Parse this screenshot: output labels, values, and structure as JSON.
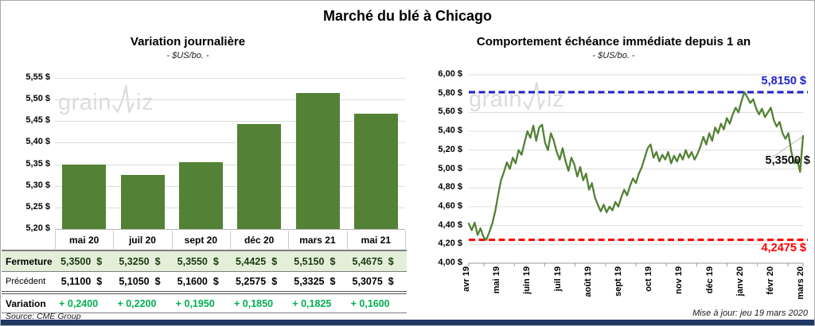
{
  "header": {
    "title": "Marché du blé à Chicago"
  },
  "watermark": {
    "part1": "grain",
    "part2": "iz"
  },
  "colors": {
    "series_green": "#538135",
    "table_row_green": "#e3efd9",
    "variation_text": "#00B050",
    "watermark_gray": "#dcdcdc",
    "brand_navy": "#1f3864"
  },
  "chart_data": [
    {
      "type": "bar",
      "title": "Variation  journalière",
      "subtitle": "- $US/bo. -",
      "categories": [
        "mai 20",
        "juil 20",
        "sept 20",
        "déc 20",
        "mars 21",
        "mai 21"
      ],
      "values": [
        5.35,
        5.325,
        5.355,
        5.4425,
        5.515,
        5.4675
      ],
      "ylim": [
        5.2,
        5.55
      ],
      "ytick_step": 0.05,
      "ytick_labels": [
        "5,55 $",
        "5,50 $",
        "5,45 $",
        "5,40 $",
        "5,35 $",
        "5,30 $",
        "5,25 $",
        "5,20 $"
      ],
      "bar_color": "#538135",
      "grid": true
    },
    {
      "type": "line",
      "title": "Comportement  échéance immédiate depuis 1 an",
      "subtitle": "- $US/bo. -",
      "x_tick_labels": [
        "avr 19",
        "mai 19",
        "juin 19",
        "juil 19",
        "août 19",
        "sept 19",
        "oct 19",
        "nov 19",
        "déc 19",
        "janv 20",
        "févr 20",
        "mars 20"
      ],
      "values": [
        4.42,
        4.35,
        4.43,
        4.3,
        4.37,
        4.28,
        4.2475,
        4.33,
        4.42,
        4.55,
        4.72,
        4.88,
        4.97,
        5.07,
        5.0,
        5.12,
        5.06,
        5.2,
        5.15,
        5.28,
        5.4,
        5.33,
        5.46,
        5.3,
        5.44,
        5.47,
        5.28,
        5.2,
        5.38,
        5.3,
        5.18,
        5.1,
        5.22,
        5.08,
        4.98,
        5.12,
        5.05,
        4.92,
        5.02,
        4.88,
        4.95,
        4.78,
        4.85,
        4.7,
        4.62,
        4.55,
        4.62,
        4.54,
        4.6,
        4.56,
        4.65,
        4.6,
        4.7,
        4.78,
        4.72,
        4.82,
        4.9,
        4.85,
        4.95,
        5.02,
        5.12,
        5.22,
        5.26,
        5.12,
        5.18,
        5.08,
        5.15,
        5.1,
        5.18,
        5.06,
        5.14,
        5.08,
        5.16,
        5.1,
        5.2,
        5.12,
        5.18,
        5.1,
        5.16,
        5.24,
        5.34,
        5.26,
        5.38,
        5.3,
        5.44,
        5.38,
        5.48,
        5.42,
        5.54,
        5.48,
        5.58,
        5.65,
        5.6,
        5.72,
        5.815,
        5.76,
        5.7,
        5.74,
        5.64,
        5.58,
        5.64,
        5.55,
        5.6,
        5.65,
        5.52,
        5.45,
        5.5,
        5.38,
        5.32,
        5.38,
        5.18,
        5.06,
        5.1,
        4.97,
        5.35
      ],
      "ylim": [
        4.0,
        6.0
      ],
      "ytick_step": 0.2,
      "ytick_labels": [
        "6,00 $",
        "5,80 $",
        "5,60 $",
        "5,40 $",
        "5,20 $",
        "5,00 $",
        "4,80 $",
        "4,60 $",
        "4,40 $",
        "4,20 $",
        "4,00 $"
      ],
      "line_color": "#538135",
      "high_line": {
        "value": 5.815,
        "label": "5,8150 $",
        "color": "#2323cc"
      },
      "low_line": {
        "value": 4.2475,
        "label": "4,2475 $",
        "color": "#ff0000"
      },
      "last_point": {
        "value": 5.35,
        "label": "5,3500 $"
      },
      "grid": true,
      "legend": "none"
    }
  ],
  "table": {
    "rows": [
      {
        "label": "Fermeture",
        "unit": "$",
        "values": [
          "5,3500",
          "5,3250",
          "5,3550",
          "5,4425",
          "5,5150",
          "5,4675"
        ]
      },
      {
        "label": "Précédent",
        "unit": "$",
        "values": [
          "5,1100",
          "5,1050",
          "5,1600",
          "5,2575",
          "5,3325",
          "5,3075"
        ]
      },
      {
        "label": "Variation",
        "unit": "",
        "values": [
          "+ 0,2400",
          "+ 0,2200",
          "+ 0,1950",
          "+ 0,1850",
          "+ 0,1825",
          "+ 0,1600"
        ]
      }
    ]
  },
  "footer": {
    "source": "Source: CME Group",
    "updated": "Mise à jour: jeu 19 mars 2020"
  }
}
